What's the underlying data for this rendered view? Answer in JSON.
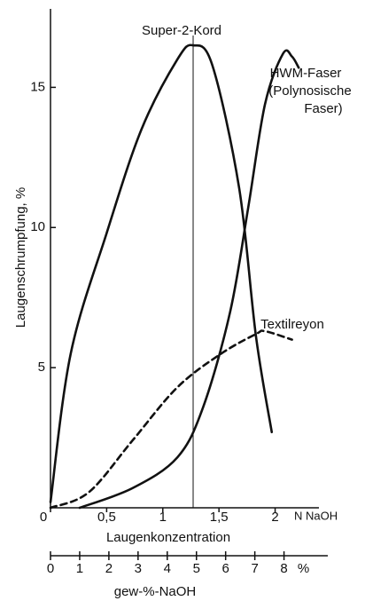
{
  "chart_data": {
    "type": "line",
    "ylabel": "Laugenschrumpfung, %",
    "xlabel": "Laugenkonzentration",
    "x_unit": "N NaOH",
    "x2label": "gew-%-NaOH",
    "x2_unit": "%",
    "xlim": [
      0,
      2.39
    ],
    "xticks": [
      0,
      {
        "value": 0.5,
        "label": "0,5"
      },
      1,
      {
        "value": 1.5,
        "label": "1,5"
      },
      2
    ],
    "ylim": [
      0,
      17.8
    ],
    "yticks": [
      5,
      10,
      15
    ],
    "x2lim": [
      0,
      9.5
    ],
    "x2ticks": [
      0,
      1,
      2,
      3,
      4,
      5,
      6,
      7,
      8
    ],
    "vline": 1.27,
    "annotations": [
      "(Polynosische",
      "Faser)"
    ],
    "series": [
      {
        "name": "Super-2-Kord",
        "color": "#111111",
        "dashed": false,
        "x": [
          0,
          0.18,
          0.5,
          0.81,
          1.13,
          1.27,
          1.44,
          1.68,
          1.83,
          1.97
        ],
        "values": [
          0.2,
          5.5,
          9.8,
          13.5,
          16.0,
          16.5,
          15.8,
          11.4,
          6.1,
          2.7
        ]
      },
      {
        "name": "HWM-Faser",
        "color": "#111111",
        "dashed": false,
        "x": [
          0.26,
          0.73,
          1.13,
          1.36,
          1.6,
          1.76,
          1.91,
          2.07,
          2.15,
          2.21
        ],
        "values": [
          0,
          0.7,
          1.8,
          3.6,
          7.0,
          10.7,
          14.4,
          16.2,
          16.1,
          15.7
        ]
      },
      {
        "name": "Textilreyon",
        "color": "#111111",
        "dashed": true,
        "x": [
          0,
          0.34,
          0.73,
          1.13,
          1.52,
          1.83,
          1.91,
          2.15
        ],
        "values": [
          0,
          0.55,
          2.4,
          4.3,
          5.5,
          6.2,
          6.3,
          6.0
        ]
      }
    ]
  }
}
